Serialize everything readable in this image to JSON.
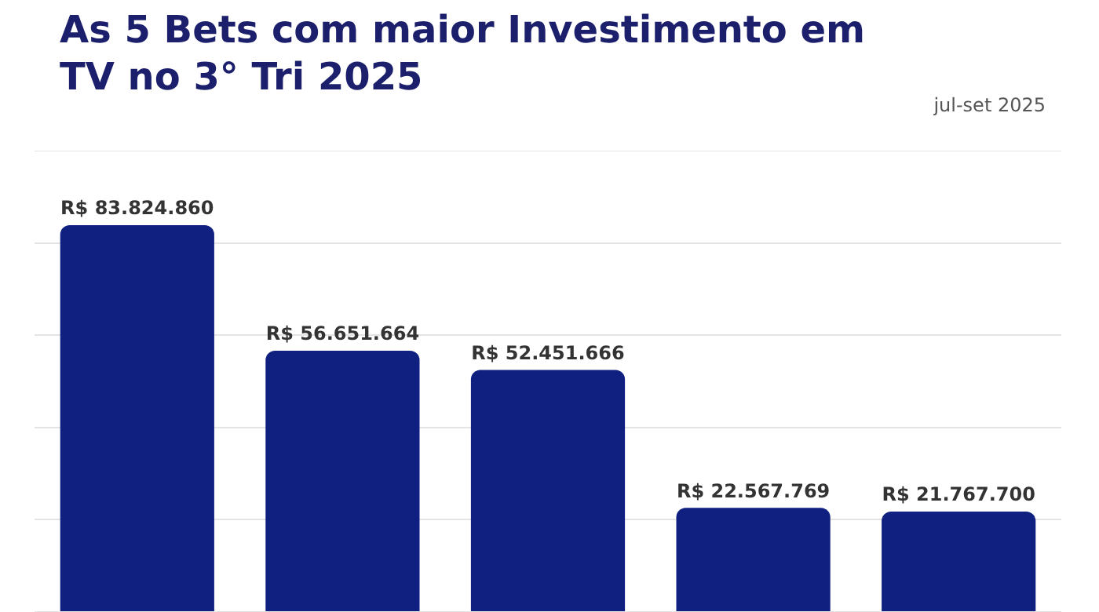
{
  "chart_data": {
    "type": "bar",
    "title": "As 5 Bets com maior Investimento em TV no 3° Tri 2025",
    "subtitle": "jul-set 2025",
    "categories": [
      null,
      null,
      null,
      null,
      null
    ],
    "values": [
      83824860,
      56651664,
      52451666,
      22567769,
      21767700
    ],
    "value_labels": [
      "R$ 83.824.860",
      "R$ 56.651.664",
      "R$ 52.451.666",
      "R$ 22.567.769",
      "R$ 21.767.700"
    ],
    "color": "#0f2080",
    "ylim": [
      0,
      100000000
    ],
    "yticks": [
      {
        "value": 0,
        "label": null
      },
      {
        "value": 20000000,
        "label": null
      },
      {
        "value": 40000000,
        "label": null
      },
      {
        "value": 60000000,
        "label": null
      },
      {
        "value": 80000000,
        "label": null
      },
      {
        "value": 100000000,
        "label": null
      }
    ],
    "grid": "y",
    "tick_labels": false
  }
}
